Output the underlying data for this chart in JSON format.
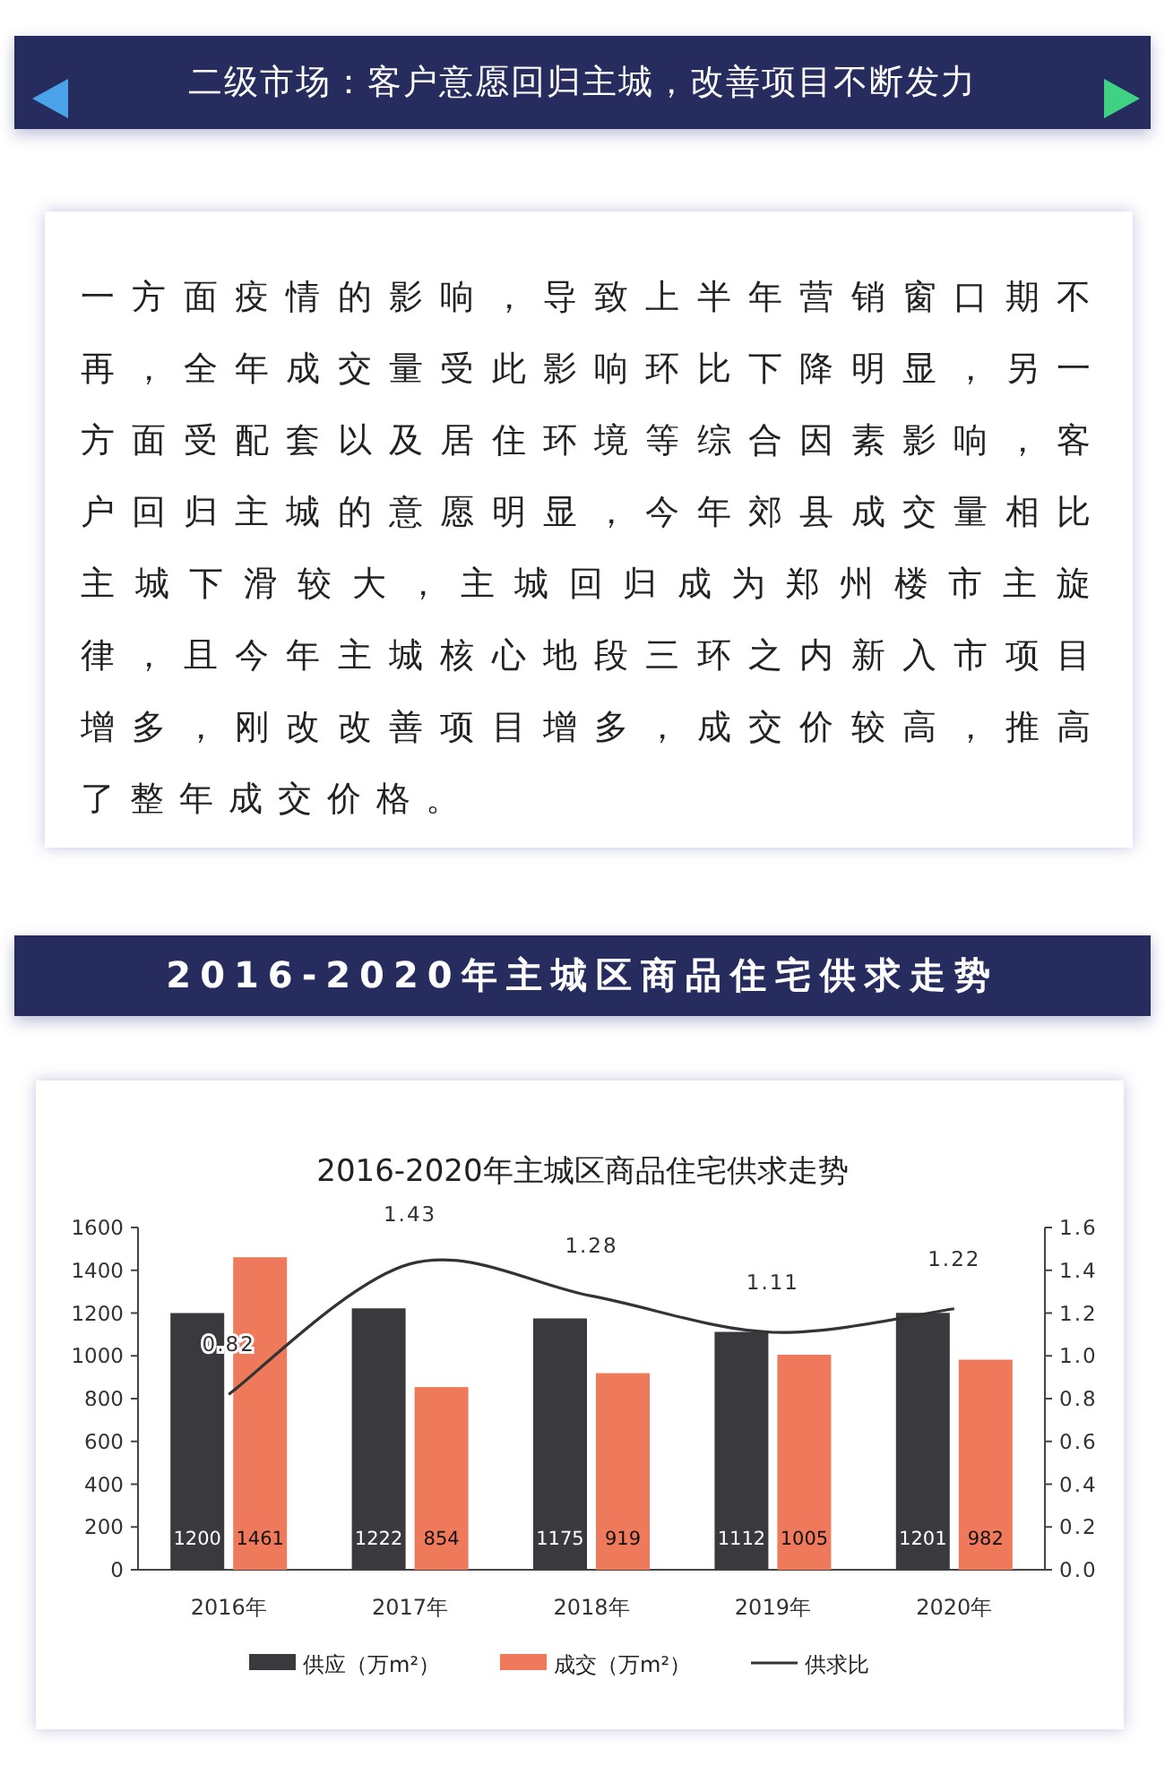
{
  "chart_data": {
    "type": "bar",
    "title": "2016-2020年主城区商品住宅供求走势",
    "annotations": [
      "二级市场：客户意愿回归主城，改善项目不断发力",
      "一方面疫情的影响，导致上半年营销窗口期不再，全年成交量受此影响环比下降明显，另一方面受配套以及居住环境等综合因素影响，客户回归主城的意愿明显，今年郊县成交量相比主城下滑较大，主城回归成为郑州楼市主旋律，且今年主城核心地段三环之内新入市项目增多，刚改改善项目增多，成交价较高，推高了整年成交价格。",
      "2016-2020年主城区商品住宅供求走势"
    ],
    "categories": [
      "2016年",
      "2017年",
      "2018年",
      "2019年",
      "2020年"
    ],
    "series": [
      {
        "name": "供应（万m²）",
        "color": "#3a3a3e",
        "values": [
          1200,
          1222,
          1175,
          1112,
          1201
        ]
      },
      {
        "name": "成交（万m²）",
        "color": "#ef7a5b",
        "values": [
          1461,
          854,
          919,
          1005,
          982
        ]
      },
      {
        "name": "供求比",
        "type": "line",
        "axis": "y2",
        "color": "#333333",
        "values": [
          0.82,
          1.43,
          1.28,
          1.11,
          1.22
        ]
      }
    ],
    "ylim": [
      0,
      1600
    ],
    "yticks": [
      0,
      200,
      400,
      600,
      800,
      1000,
      1200,
      1400,
      1600
    ],
    "y2lim": [
      0,
      1.6
    ],
    "y2ticks": [
      {
        "value": 0,
        "label": "0.0"
      },
      0.2,
      0.4,
      0.6,
      0.8,
      {
        "value": 1,
        "label": "1.0"
      },
      1.2,
      1.4,
      1.6
    ],
    "data_labels": true,
    "legend": "bottom",
    "grid": false,
    "marker": "none"
  }
}
